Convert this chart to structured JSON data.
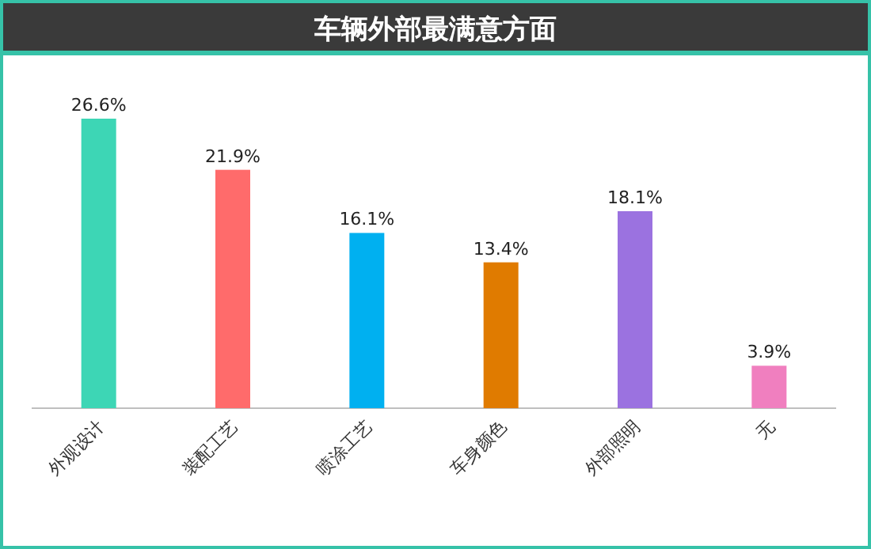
{
  "chart_data": {
    "type": "bar",
    "title": "车辆外部最满意方面",
    "categories": [
      "外观设计",
      "装配工艺",
      "喷涂工艺",
      "车身颜色",
      "外部照明",
      "无"
    ],
    "values": [
      26.6,
      21.9,
      16.1,
      13.4,
      18.1,
      3.9
    ],
    "colors": [
      "#3dd6b5",
      "#ff6b6b",
      "#00b0f0",
      "#e07b00",
      "#9b72e0",
      "#f07fbf"
    ],
    "value_labels": [
      "26.6%",
      "21.9%",
      "16.1%",
      "13.4%",
      "18.1%",
      "3.9%"
    ]
  }
}
